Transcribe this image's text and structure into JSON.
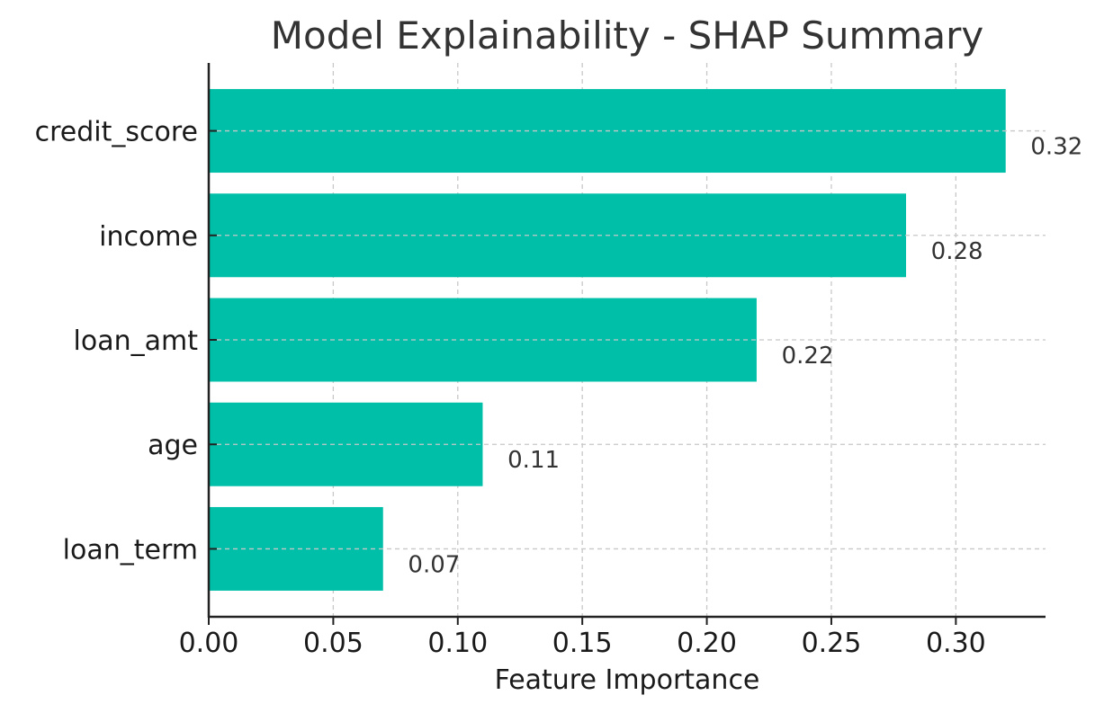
{
  "chart_data": {
    "type": "bar",
    "orientation": "horizontal",
    "title": "Model Explainability - SHAP Summary",
    "xlabel": "Feature Importance",
    "ylabel": "",
    "categories": [
      "credit_score",
      "income",
      "loan_amt",
      "age",
      "loan_term"
    ],
    "values": [
      0.32,
      0.28,
      0.22,
      0.11,
      0.07
    ],
    "value_labels": [
      "0.32",
      "0.28",
      "0.22",
      "0.11",
      "0.07"
    ],
    "xlim": [
      0,
      0.336
    ],
    "xticks": [
      0.0,
      0.05,
      0.1,
      0.15,
      0.2,
      0.25,
      0.3
    ],
    "xtick_labels": [
      "0.00",
      "0.05",
      "0.10",
      "0.15",
      "0.20",
      "0.25",
      "0.30"
    ],
    "grid": true,
    "legend": "none",
    "bar_color": "#00BFA8"
  }
}
